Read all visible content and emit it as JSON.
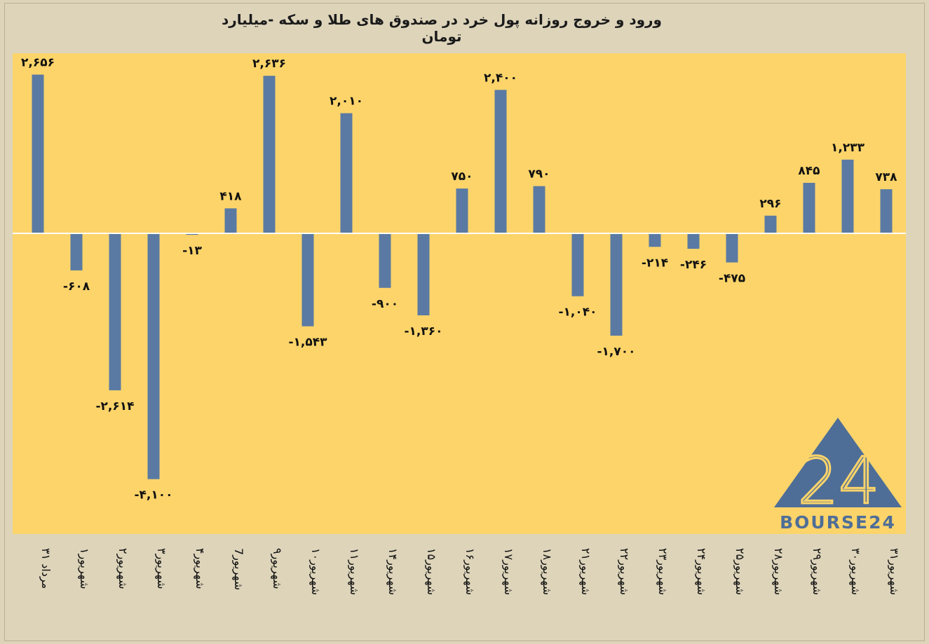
{
  "title": "ورود و خروج روزانه پول خرد در صندوق های طلا و سکه -میلیارد تومان",
  "logo": {
    "name": "BOURSE24",
    "mark": "24"
  },
  "colors": {
    "background": "#ddd4ba",
    "plot_area": "#fcd46a",
    "bar": "#5a7aa3",
    "zero_line": "#ffffff",
    "text": "#111111"
  },
  "chart_data": {
    "type": "bar",
    "title": "ورود و خروج روزانه پول خرد در صندوق های طلا و سکه -میلیارد تومان",
    "categories": [
      "۳۱ مرداد",
      "۱شهریور",
      "۲شهریور",
      "۳شهریور",
      "۴شهریور",
      "7شهریور",
      "۹شهریور",
      "۱۰شهریور",
      "۱۱شهریور",
      "۱۴شهریور",
      "۱۵شهریور",
      "۱۶شهریور",
      "۱۷شهریور",
      "۱۸شهریور",
      "۲۱شهریور",
      "۲۲شهریور",
      "۲۳شهریور",
      "۲۴شهریور",
      "۲۵شهریور",
      "۲۸شهریور",
      "۲۹شهریور",
      "۳۰شهریور",
      "۳۱شهریور"
    ],
    "values": [
      2656,
      -608,
      -2614,
      -4100,
      -13,
      418,
      2636,
      -1543,
      2010,
      -900,
      -1360,
      750,
      2400,
      790,
      -1040,
      -1700,
      -214,
      -246,
      -475,
      296,
      845,
      1233,
      738
    ],
    "data_labels": [
      "۲,۶۵۶",
      "-۶۰۸",
      "-۲,۶۱۴",
      "-۴,۱۰۰",
      "-۱۳",
      "۴۱۸",
      "۲,۶۳۶",
      "-۱,۵۴۳",
      "۲,۰۱۰",
      "-۹۰۰",
      "-۱,۳۶۰",
      "۷۵۰",
      "۲,۴۰۰",
      "۷۹۰",
      "-۱,۰۴۰",
      "-۱,۷۰۰",
      "-۲۱۴",
      "-۲۴۶",
      "-۴۷۵",
      "۲۹۶",
      "۸۴۵",
      "۱,۲۳۳",
      "۷۳۸"
    ],
    "xlabel": "",
    "ylabel": "",
    "ylim": [
      -4100,
      2656
    ],
    "grid": false,
    "legend": "none"
  }
}
